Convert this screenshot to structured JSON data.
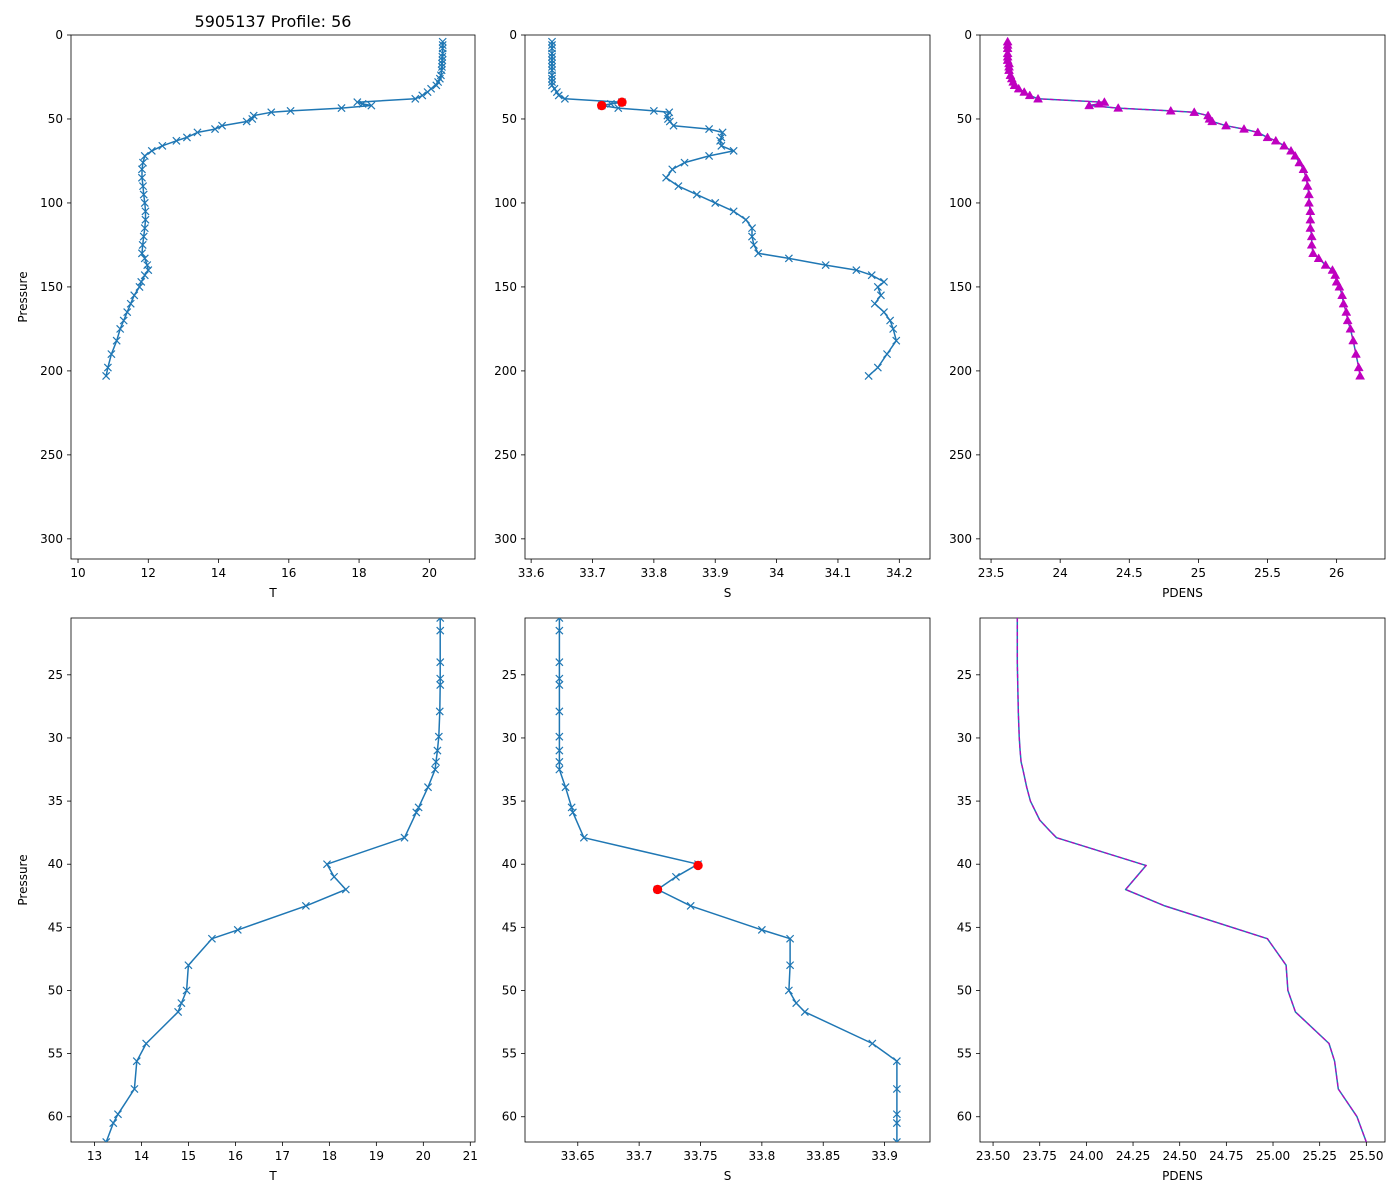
{
  "figure": {
    "suptitle": "5905137 Profile: 56",
    "colors": {
      "temp_sal_line": "#1f77b4",
      "flag_marker": "#ff0000",
      "pdens_marker": "#bf00bf"
    }
  },
  "chart_data": [
    {
      "id": "top-temperature",
      "type": "line",
      "title": "5905137 Profile: 56",
      "xlabel": "T",
      "ylabel": "Pressure",
      "xlim": [
        9.8,
        21.3
      ],
      "ylim": [
        312,
        0
      ],
      "y_inverted": true,
      "xticks": [
        10,
        12,
        14,
        16,
        18,
        20
      ],
      "yticks": [
        0,
        50,
        100,
        150,
        200,
        250,
        300
      ],
      "series": [
        {
          "name": "T",
          "marker": "x",
          "x": [
            20.38,
            20.38,
            20.38,
            20.38,
            20.37,
            20.37,
            20.36,
            20.36,
            20.35,
            20.33,
            20.3,
            20.25,
            20.2,
            20.05,
            19.95,
            19.8,
            19.6,
            17.95,
            18.1,
            18.35,
            17.5,
            16.05,
            15.5,
            15.0,
            14.96,
            14.8,
            14.1,
            13.9,
            13.4,
            13.1,
            12.8,
            12.4,
            12.1,
            11.9,
            11.85,
            11.82,
            11.82,
            11.85,
            11.87,
            11.9,
            11.92,
            11.92,
            11.9,
            11.87,
            11.84,
            11.82,
            11.9,
            11.97,
            12.0,
            11.9,
            11.8,
            11.75,
            11.6,
            11.5,
            11.4,
            11.3,
            11.2,
            11.1,
            10.95,
            10.85,
            10.8
          ],
          "y": [
            4,
            6,
            8,
            11,
            13,
            15,
            17,
            19,
            21,
            24,
            26,
            28,
            30,
            32,
            34,
            36,
            38,
            40,
            41,
            42,
            43.5,
            45.2,
            46,
            48,
            50,
            51.5,
            54,
            56,
            58,
            61,
            63,
            66,
            69,
            72,
            76,
            80,
            85,
            90,
            95,
            100,
            105,
            110,
            115,
            120,
            125,
            130,
            133,
            137,
            140,
            143,
            147,
            150,
            155,
            160,
            165,
            170,
            175,
            182,
            190,
            198,
            203
          ]
        }
      ]
    },
    {
      "id": "top-salinity",
      "type": "line",
      "xlabel": "S",
      "ylabel": "",
      "xlim": [
        33.59,
        34.25
      ],
      "ylim": [
        312,
        0
      ],
      "y_inverted": true,
      "xticks": [
        33.6,
        33.7,
        33.8,
        33.9,
        34.0,
        34.1,
        34.2
      ],
      "yticks": [
        0,
        50,
        100,
        150,
        200,
        250,
        300
      ],
      "series": [
        {
          "name": "S",
          "marker": "x",
          "x": [
            33.634,
            33.634,
            33.634,
            33.634,
            33.634,
            33.634,
            33.634,
            33.634,
            33.634,
            33.634,
            33.634,
            33.634,
            33.634,
            33.638,
            33.642,
            33.645,
            33.655,
            33.748,
            33.73,
            33.715,
            33.742,
            33.8,
            33.825,
            33.822,
            33.823,
            33.826,
            33.832,
            33.89,
            33.912,
            33.91,
            33.908,
            33.91,
            33.93,
            33.89,
            33.85,
            33.83,
            33.82,
            33.84,
            33.87,
            33.9,
            33.93,
            33.95,
            33.96,
            33.96,
            33.963,
            33.97,
            34.02,
            34.08,
            34.13,
            34.155,
            34.175,
            34.165,
            34.17,
            34.16,
            34.175,
            34.185,
            34.19,
            34.195,
            34.18,
            34.165,
            34.15
          ],
          "y": [
            4,
            6,
            8,
            11,
            13,
            15,
            17,
            19,
            21,
            24,
            26,
            28,
            30,
            32,
            34,
            36,
            38,
            40,
            41,
            42,
            43.5,
            45.2,
            46,
            48,
            50,
            51.5,
            54,
            56,
            58,
            61,
            63,
            66,
            69,
            72,
            76,
            80,
            85,
            90,
            95,
            100,
            105,
            110,
            115,
            120,
            125,
            130,
            133,
            137,
            140,
            143,
            147,
            150,
            155,
            160,
            165,
            170,
            175,
            182,
            190,
            198,
            203
          ]
        }
      ],
      "flagged": {
        "x": [
          33.748,
          33.715
        ],
        "y": [
          40,
          42
        ]
      }
    },
    {
      "id": "top-density",
      "type": "line",
      "xlabel": "PDENS",
      "ylabel": "",
      "xlim": [
        23.42,
        26.35
      ],
      "ylim": [
        312,
        0
      ],
      "y_inverted": true,
      "xticks": [
        23.5,
        24.0,
        24.5,
        25.0,
        25.5,
        26.0
      ],
      "yticks": [
        0,
        50,
        100,
        150,
        200,
        250,
        300
      ],
      "series": [
        {
          "name": "PDENS",
          "marker": "^",
          "x": [
            23.62,
            23.62,
            23.62,
            23.62,
            23.62,
            23.62,
            23.63,
            23.63,
            23.63,
            23.64,
            23.65,
            23.66,
            23.67,
            23.7,
            23.74,
            23.78,
            23.84,
            24.32,
            24.28,
            24.21,
            24.42,
            24.8,
            24.97,
            25.07,
            25.08,
            25.1,
            25.2,
            25.33,
            25.43,
            25.5,
            25.56,
            25.62,
            25.67,
            25.7,
            25.73,
            25.76,
            25.78,
            25.79,
            25.8,
            25.8,
            25.81,
            25.81,
            25.81,
            25.82,
            25.82,
            25.83,
            25.87,
            25.92,
            25.97,
            25.99,
            26.0,
            26.02,
            26.04,
            26.05,
            26.07,
            26.08,
            26.1,
            26.12,
            26.14,
            26.16,
            26.17
          ],
          "y": [
            4,
            6,
            8,
            11,
            13,
            15,
            17,
            19,
            21,
            24,
            26,
            28,
            30,
            32,
            34,
            36,
            38,
            40,
            41,
            42,
            43.5,
            45.2,
            46,
            48,
            50,
            51.5,
            54,
            56,
            58,
            61,
            63,
            66,
            69,
            72,
            76,
            80,
            85,
            90,
            95,
            100,
            105,
            110,
            115,
            120,
            125,
            130,
            133,
            137,
            140,
            143,
            147,
            150,
            155,
            160,
            165,
            170,
            175,
            182,
            190,
            198,
            203
          ]
        }
      ]
    },
    {
      "id": "bottom-temperature",
      "type": "line",
      "xlabel": "T",
      "ylabel": "Pressure",
      "xlim": [
        12.5,
        21.1
      ],
      "ylim": [
        62,
        20.5
      ],
      "y_inverted": true,
      "xticks": [
        13,
        14,
        15,
        16,
        17,
        18,
        19,
        20,
        21
      ],
      "yticks": [
        25,
        30,
        35,
        40,
        45,
        50,
        55,
        60
      ],
      "series": [
        {
          "name": "T",
          "marker": "x",
          "x": [
            20.36,
            20.36,
            20.36,
            20.36,
            20.36,
            20.35,
            20.33,
            20.3,
            20.27,
            20.25,
            20.1,
            19.9,
            19.85,
            19.6,
            17.95,
            18.1,
            18.35,
            17.5,
            16.05,
            15.5,
            15.0,
            14.96,
            14.85,
            14.78,
            14.1,
            13.9,
            13.85,
            13.5,
            13.4,
            13.25
          ],
          "y": [
            20.5,
            21.5,
            24,
            25.3,
            25.8,
            27.9,
            29.9,
            31,
            31.9,
            32.5,
            33.9,
            35.5,
            35.9,
            37.9,
            40,
            41,
            42,
            43.3,
            45.2,
            45.9,
            48,
            50,
            51,
            51.7,
            54.2,
            55.6,
            57.8,
            59.8,
            60.5,
            62
          ]
        }
      ]
    },
    {
      "id": "bottom-salinity",
      "type": "line",
      "xlabel": "S",
      "ylabel": "",
      "xlim": [
        33.607,
        33.937
      ],
      "ylim": [
        62,
        20.5
      ],
      "y_inverted": true,
      "xticks": [
        33.65,
        33.7,
        33.75,
        33.8,
        33.85,
        33.9
      ],
      "yticks": [
        25,
        30,
        35,
        40,
        45,
        50,
        55,
        60
      ],
      "series": [
        {
          "name": "S",
          "marker": "x",
          "x": [
            33.635,
            33.635,
            33.635,
            33.635,
            33.635,
            33.635,
            33.635,
            33.635,
            33.635,
            33.635,
            33.64,
            33.645,
            33.646,
            33.655,
            33.748,
            33.73,
            33.715,
            33.742,
            33.8,
            33.823,
            33.823,
            33.822,
            33.828,
            33.835,
            33.89,
            33.91,
            33.91,
            33.91,
            33.91,
            33.91
          ],
          "y": [
            20.5,
            21.5,
            24,
            25.3,
            25.8,
            27.9,
            29.9,
            31,
            31.9,
            32.5,
            33.9,
            35.5,
            35.9,
            37.9,
            40,
            41,
            42,
            43.3,
            45.2,
            45.9,
            48,
            50,
            51,
            51.7,
            54.2,
            55.6,
            57.8,
            59.8,
            60.5,
            62
          ]
        }
      ],
      "flagged": {
        "x": [
          33.748,
          33.715
        ],
        "y": [
          40.1,
          42
        ]
      }
    },
    {
      "id": "bottom-density",
      "type": "line",
      "xlabel": "PDENS",
      "ylabel": "",
      "xlim": [
        23.43,
        25.6
      ],
      "ylim": [
        62,
        20.5
      ],
      "y_inverted": true,
      "xticks": [
        23.5,
        23.75,
        24.0,
        24.25,
        24.5,
        24.75,
        25.0,
        25.25,
        25.5
      ],
      "xtick_labels": [
        "23.50",
        "23.75",
        "24.00",
        "24.25",
        "24.50",
        "24.75",
        "25.00",
        "25.25",
        "25.50"
      ],
      "yticks": [
        25,
        30,
        35,
        40,
        45,
        50,
        55,
        60
      ],
      "series": [
        {
          "name": "PDENS",
          "marker": "none",
          "x": [
            23.63,
            23.63,
            23.635,
            23.64,
            23.645,
            23.65,
            23.66,
            23.68,
            23.7,
            23.75,
            23.8,
            23.84,
            24.32,
            24.21,
            24.42,
            24.97,
            25.07,
            25.08,
            25.12,
            25.3,
            25.33,
            25.35,
            25.45,
            25.5
          ],
          "y": [
            20.5,
            24,
            27.9,
            29.9,
            31,
            31.9,
            32.5,
            33.9,
            35,
            36.5,
            37.3,
            37.9,
            40.1,
            42,
            43.3,
            45.9,
            48,
            50,
            51.7,
            54.2,
            55.6,
            57.8,
            60,
            62
          ]
        }
      ]
    }
  ]
}
